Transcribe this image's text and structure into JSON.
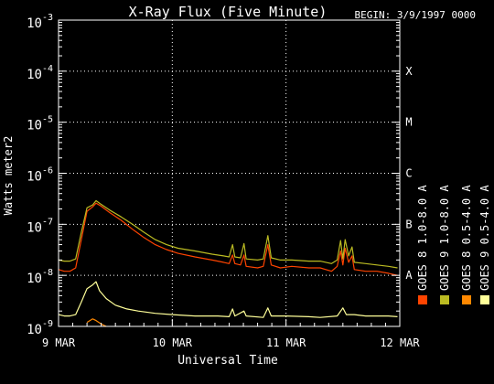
{
  "chart_data": {
    "type": "line",
    "title": "X-Ray Flux (Five Minute)",
    "begin_label": "BEGIN: 3/9/1997 0000",
    "ylabel": "Watts meter2",
    "xlabel": "Universal Time",
    "y_scale": "log",
    "ylim_exponent": [
      -9,
      -3
    ],
    "y_ticks": [
      {
        "base": "10",
        "exp": "-9",
        "value": 1e-09
      },
      {
        "base": "10",
        "exp": "-8",
        "value": 1e-08
      },
      {
        "base": "10",
        "exp": "-7",
        "value": 1e-07
      },
      {
        "base": "10",
        "exp": "-6",
        "value": 1e-06
      },
      {
        "base": "10",
        "exp": "-5",
        "value": 1e-05
      },
      {
        "base": "10",
        "exp": "-4",
        "value": 0.0001
      },
      {
        "base": "10",
        "exp": "-3",
        "value": 0.001
      }
    ],
    "x_range_days": [
      0,
      3
    ],
    "x_ticks": [
      {
        "label": "9 MAR",
        "day": 0
      },
      {
        "label": "10 MAR",
        "day": 1
      },
      {
        "label": "11 MAR",
        "day": 2
      },
      {
        "label": "12 MAR",
        "day": 3
      }
    ],
    "flare_classes": [
      {
        "label": "A",
        "value": 1e-08
      },
      {
        "label": "B",
        "value": 1e-07
      },
      {
        "label": "C",
        "value": 1e-06
      },
      {
        "label": "M",
        "value": 1e-05
      },
      {
        "label": "X",
        "value": 0.0001
      }
    ],
    "grid": "dotted at each decade and each day",
    "series": [
      {
        "name": "GOES 8 1.0-8.0 A",
        "color": "#ff4400",
        "points": [
          [
            0,
            1.3e-08
          ],
          [
            0.05,
            1.2e-08
          ],
          [
            0.1,
            1.2e-08
          ],
          [
            0.15,
            1.4e-08
          ],
          [
            0.2,
            5e-08
          ],
          [
            0.25,
            1.8e-07
          ],
          [
            0.3,
            2.2e-07
          ],
          [
            0.33,
            2.6e-07
          ],
          [
            0.37,
            2.3e-07
          ],
          [
            0.45,
            1.7e-07
          ],
          [
            0.55,
            1.2e-07
          ],
          [
            0.65,
            8e-08
          ],
          [
            0.75,
            5.5e-08
          ],
          [
            0.85,
            4e-08
          ],
          [
            0.95,
            3.2e-08
          ],
          [
            1.05,
            2.7e-08
          ],
          [
            1.2,
            2.3e-08
          ],
          [
            1.35,
            2e-08
          ],
          [
            1.45,
            1.8e-08
          ],
          [
            1.5,
            1.7e-08
          ],
          [
            1.53,
            2.5e-08
          ],
          [
            1.55,
            1.7e-08
          ],
          [
            1.6,
            1.6e-08
          ],
          [
            1.63,
            2.5e-08
          ],
          [
            1.65,
            1.5e-08
          ],
          [
            1.75,
            1.4e-08
          ],
          [
            1.8,
            1.5e-08
          ],
          [
            1.84,
            4e-08
          ],
          [
            1.87,
            1.6e-08
          ],
          [
            1.95,
            1.4e-08
          ],
          [
            2.05,
            1.5e-08
          ],
          [
            2.2,
            1.4e-08
          ],
          [
            2.3,
            1.4e-08
          ],
          [
            2.4,
            1.2e-08
          ],
          [
            2.45,
            1.5e-08
          ],
          [
            2.48,
            3e-08
          ],
          [
            2.5,
            1.6e-08
          ],
          [
            2.52,
            3.4e-08
          ],
          [
            2.55,
            1.8e-08
          ],
          [
            2.58,
            2.4e-08
          ],
          [
            2.6,
            1.3e-08
          ],
          [
            2.7,
            1.2e-08
          ],
          [
            2.8,
            1.2e-08
          ],
          [
            2.9,
            1.1e-08
          ],
          [
            2.98,
            1e-08
          ]
        ]
      },
      {
        "name": "GOES 8 0.5-4.0 A",
        "color": "#ff8800",
        "points": [
          [
            0.25,
            1.2e-09
          ],
          [
            0.3,
            1.4e-09
          ],
          [
            0.33,
            1.3e-09
          ],
          [
            0.38,
            1.1e-09
          ],
          [
            0.42,
            1e-09
          ]
        ]
      },
      {
        "name": "GOES 9 1.0-8.0 A",
        "color": "#bbbb22",
        "points": [
          [
            0,
            2e-08
          ],
          [
            0.05,
            1.9e-08
          ],
          [
            0.1,
            1.9e-08
          ],
          [
            0.15,
            2.1e-08
          ],
          [
            0.2,
            7e-08
          ],
          [
            0.25,
            2.1e-07
          ],
          [
            0.3,
            2.4e-07
          ],
          [
            0.33,
            2.9e-07
          ],
          [
            0.37,
            2.5e-07
          ],
          [
            0.45,
            1.9e-07
          ],
          [
            0.55,
            1.4e-07
          ],
          [
            0.65,
            1e-07
          ],
          [
            0.75,
            7e-08
          ],
          [
            0.85,
            5e-08
          ],
          [
            0.95,
            4e-08
          ],
          [
            1.05,
            3.4e-08
          ],
          [
            1.2,
            3e-08
          ],
          [
            1.35,
            2.6e-08
          ],
          [
            1.45,
            2.4e-08
          ],
          [
            1.5,
            2.3e-08
          ],
          [
            1.53,
            4e-08
          ],
          [
            1.55,
            2.3e-08
          ],
          [
            1.6,
            2.2e-08
          ],
          [
            1.63,
            4.2e-08
          ],
          [
            1.65,
            2.1e-08
          ],
          [
            1.75,
            2e-08
          ],
          [
            1.8,
            2.1e-08
          ],
          [
            1.84,
            6e-08
          ],
          [
            1.87,
            2.2e-08
          ],
          [
            1.95,
            2e-08
          ],
          [
            2.05,
            2e-08
          ],
          [
            2.2,
            1.9e-08
          ],
          [
            2.3,
            1.9e-08
          ],
          [
            2.4,
            1.7e-08
          ],
          [
            2.45,
            2e-08
          ],
          [
            2.48,
            4.8e-08
          ],
          [
            2.5,
            2.1e-08
          ],
          [
            2.52,
            5e-08
          ],
          [
            2.55,
            2.4e-08
          ],
          [
            2.58,
            3.6e-08
          ],
          [
            2.6,
            1.8e-08
          ],
          [
            2.7,
            1.7e-08
          ],
          [
            2.8,
            1.6e-08
          ],
          [
            2.9,
            1.5e-08
          ],
          [
            2.98,
            1.4e-08
          ]
        ]
      },
      {
        "name": "GOES 9 0.5-4.0 A",
        "color": "#ffff99",
        "points": [
          [
            0,
            1.7e-09
          ],
          [
            0.05,
            1.6e-09
          ],
          [
            0.1,
            1.6e-09
          ],
          [
            0.15,
            1.7e-09
          ],
          [
            0.2,
            3e-09
          ],
          [
            0.25,
            5.5e-09
          ],
          [
            0.3,
            6.5e-09
          ],
          [
            0.33,
            7.5e-09
          ],
          [
            0.36,
            5e-09
          ],
          [
            0.42,
            3.5e-09
          ],
          [
            0.5,
            2.6e-09
          ],
          [
            0.6,
            2.2e-09
          ],
          [
            0.7,
            2e-09
          ],
          [
            0.85,
            1.8e-09
          ],
          [
            1.0,
            1.7e-09
          ],
          [
            1.2,
            1.6e-09
          ],
          [
            1.4,
            1.6e-09
          ],
          [
            1.5,
            1.55e-09
          ],
          [
            1.53,
            2.2e-09
          ],
          [
            1.55,
            1.6e-09
          ],
          [
            1.63,
            2e-09
          ],
          [
            1.65,
            1.6e-09
          ],
          [
            1.8,
            1.5e-09
          ],
          [
            1.84,
            2.3e-09
          ],
          [
            1.87,
            1.6e-09
          ],
          [
            2.0,
            1.6e-09
          ],
          [
            2.2,
            1.55e-09
          ],
          [
            2.3,
            1.5e-09
          ],
          [
            2.45,
            1.6e-09
          ],
          [
            2.5,
            2.3e-09
          ],
          [
            2.53,
            1.7e-09
          ],
          [
            2.6,
            1.7e-09
          ],
          [
            2.7,
            1.6e-09
          ],
          [
            2.9,
            1.6e-09
          ],
          [
            2.98,
            1.55e-09
          ]
        ]
      }
    ]
  }
}
